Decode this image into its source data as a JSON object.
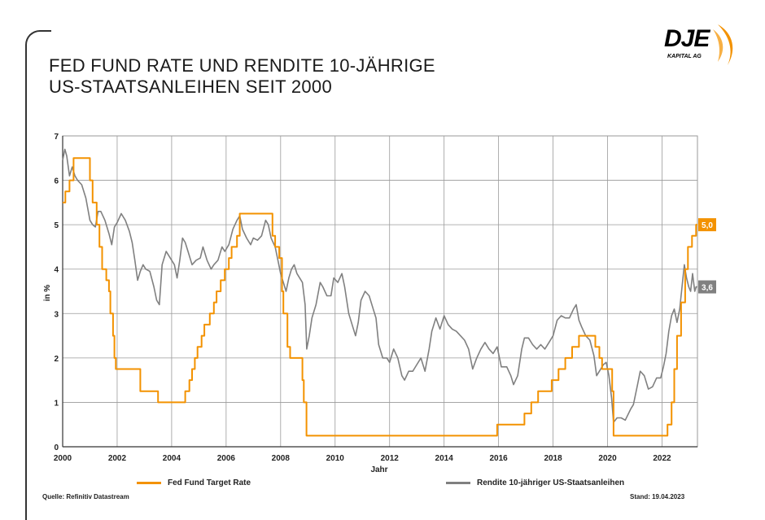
{
  "header": {
    "title_line1": "FED FUND RATE UND RENDITE 10-JÄHRIGE",
    "title_line2": "US-STAATSANLEIHEN SEIT 2000"
  },
  "logo": {
    "text": "DJE",
    "sub": "KAPITAL AG",
    "accent": "#f39200"
  },
  "footer": {
    "source": "Quelle: Refinitiv Datastream",
    "date": "Stand: 19.04.2023"
  },
  "colors": {
    "fed": "#f39200",
    "bond": "#808080",
    "grid": "#9a9a9a"
  },
  "chart_data": {
    "type": "line",
    "title": "FED FUND RATE UND RENDITE 10-JÄHRIGE US-STAATSANLEIHEN SEIT 2000",
    "xlabel": "Jahr",
    "ylabel": "in %",
    "xlim": [
      2000,
      2023.3
    ],
    "ylim": [
      0,
      7
    ],
    "x_ticks": [
      2000,
      2002,
      2004,
      2006,
      2008,
      2010,
      2012,
      2014,
      2016,
      2018,
      2020,
      2022
    ],
    "y_ticks": [
      0,
      1,
      2,
      3,
      4,
      5,
      6,
      7
    ],
    "grid": true,
    "series": [
      {
        "name": "Fed Fund Target Rate",
        "color": "#f39200",
        "step": true,
        "end_label": "5,0",
        "points": [
          [
            2000.0,
            5.5
          ],
          [
            2000.1,
            5.75
          ],
          [
            2000.25,
            6.0
          ],
          [
            2000.4,
            6.5
          ],
          [
            2001.0,
            6.0
          ],
          [
            2001.1,
            5.5
          ],
          [
            2001.25,
            5.0
          ],
          [
            2001.35,
            4.5
          ],
          [
            2001.45,
            4.0
          ],
          [
            2001.6,
            3.75
          ],
          [
            2001.7,
            3.5
          ],
          [
            2001.75,
            3.0
          ],
          [
            2001.85,
            2.5
          ],
          [
            2001.9,
            2.0
          ],
          [
            2001.95,
            1.75
          ],
          [
            2002.85,
            1.25
          ],
          [
            2003.5,
            1.0
          ],
          [
            2004.5,
            1.25
          ],
          [
            2004.65,
            1.5
          ],
          [
            2004.75,
            1.75
          ],
          [
            2004.85,
            2.0
          ],
          [
            2004.95,
            2.25
          ],
          [
            2005.1,
            2.5
          ],
          [
            2005.2,
            2.75
          ],
          [
            2005.4,
            3.0
          ],
          [
            2005.55,
            3.25
          ],
          [
            2005.65,
            3.5
          ],
          [
            2005.8,
            3.75
          ],
          [
            2005.95,
            4.0
          ],
          [
            2006.1,
            4.25
          ],
          [
            2006.2,
            4.5
          ],
          [
            2006.4,
            4.75
          ],
          [
            2006.5,
            5.25
          ],
          [
            2007.7,
            4.75
          ],
          [
            2007.8,
            4.5
          ],
          [
            2007.95,
            4.25
          ],
          [
            2008.05,
            3.5
          ],
          [
            2008.1,
            3.0
          ],
          [
            2008.25,
            2.25
          ],
          [
            2008.35,
            2.0
          ],
          [
            2008.8,
            1.5
          ],
          [
            2008.85,
            1.0
          ],
          [
            2008.95,
            0.25
          ],
          [
            2015.95,
            0.5
          ],
          [
            2016.95,
            0.75
          ],
          [
            2017.2,
            1.0
          ],
          [
            2017.45,
            1.25
          ],
          [
            2017.95,
            1.5
          ],
          [
            2018.2,
            1.75
          ],
          [
            2018.45,
            2.0
          ],
          [
            2018.7,
            2.25
          ],
          [
            2018.95,
            2.5
          ],
          [
            2019.55,
            2.25
          ],
          [
            2019.7,
            2.0
          ],
          [
            2019.8,
            1.75
          ],
          [
            2020.17,
            1.25
          ],
          [
            2020.22,
            0.25
          ],
          [
            2022.2,
            0.5
          ],
          [
            2022.35,
            1.0
          ],
          [
            2022.45,
            1.75
          ],
          [
            2022.55,
            2.5
          ],
          [
            2022.7,
            3.25
          ],
          [
            2022.85,
            4.0
          ],
          [
            2022.95,
            4.5
          ],
          [
            2023.1,
            4.75
          ],
          [
            2023.25,
            5.0
          ],
          [
            2023.3,
            5.0
          ]
        ]
      },
      {
        "name": "Rendite 10-jähriger US-Staatsanleihen",
        "color": "#808080",
        "step": false,
        "end_label": "3,6",
        "points": [
          [
            2000.0,
            6.45
          ],
          [
            2000.08,
            6.7
          ],
          [
            2000.15,
            6.55
          ],
          [
            2000.25,
            6.1
          ],
          [
            2000.35,
            6.3
          ],
          [
            2000.45,
            6.1
          ],
          [
            2000.55,
            6.0
          ],
          [
            2000.7,
            5.9
          ],
          [
            2000.85,
            5.6
          ],
          [
            2001.0,
            5.1
          ],
          [
            2001.1,
            5.0
          ],
          [
            2001.2,
            4.95
          ],
          [
            2001.3,
            5.3
          ],
          [
            2001.4,
            5.3
          ],
          [
            2001.55,
            5.1
          ],
          [
            2001.7,
            4.8
          ],
          [
            2001.8,
            4.55
          ],
          [
            2001.9,
            4.95
          ],
          [
            2002.0,
            5.05
          ],
          [
            2002.15,
            5.25
          ],
          [
            2002.3,
            5.1
          ],
          [
            2002.45,
            4.85
          ],
          [
            2002.55,
            4.6
          ],
          [
            2002.65,
            4.2
          ],
          [
            2002.75,
            3.75
          ],
          [
            2002.85,
            3.95
          ],
          [
            2002.95,
            4.1
          ],
          [
            2003.05,
            4.0
          ],
          [
            2003.2,
            3.95
          ],
          [
            2003.35,
            3.6
          ],
          [
            2003.45,
            3.3
          ],
          [
            2003.55,
            3.2
          ],
          [
            2003.65,
            4.1
          ],
          [
            2003.8,
            4.4
          ],
          [
            2003.95,
            4.25
          ],
          [
            2004.1,
            4.1
          ],
          [
            2004.2,
            3.8
          ],
          [
            2004.3,
            4.2
          ],
          [
            2004.4,
            4.7
          ],
          [
            2004.5,
            4.6
          ],
          [
            2004.6,
            4.4
          ],
          [
            2004.75,
            4.1
          ],
          [
            2004.9,
            4.2
          ],
          [
            2005.05,
            4.25
          ],
          [
            2005.15,
            4.5
          ],
          [
            2005.3,
            4.2
          ],
          [
            2005.45,
            4.0
          ],
          [
            2005.55,
            4.1
          ],
          [
            2005.7,
            4.2
          ],
          [
            2005.85,
            4.5
          ],
          [
            2005.95,
            4.4
          ],
          [
            2006.1,
            4.55
          ],
          [
            2006.25,
            4.9
          ],
          [
            2006.4,
            5.1
          ],
          [
            2006.5,
            5.2
          ],
          [
            2006.6,
            4.9
          ],
          [
            2006.75,
            4.7
          ],
          [
            2006.9,
            4.55
          ],
          [
            2007.0,
            4.7
          ],
          [
            2007.15,
            4.65
          ],
          [
            2007.3,
            4.75
          ],
          [
            2007.45,
            5.1
          ],
          [
            2007.55,
            5.0
          ],
          [
            2007.65,
            4.7
          ],
          [
            2007.8,
            4.5
          ],
          [
            2007.9,
            4.2
          ],
          [
            2008.0,
            3.9
          ],
          [
            2008.1,
            3.7
          ],
          [
            2008.2,
            3.5
          ],
          [
            2008.3,
            3.8
          ],
          [
            2008.4,
            4.0
          ],
          [
            2008.5,
            4.1
          ],
          [
            2008.6,
            3.9
          ],
          [
            2008.7,
            3.8
          ],
          [
            2008.8,
            3.7
          ],
          [
            2008.9,
            3.2
          ],
          [
            2008.96,
            2.2
          ],
          [
            2009.05,
            2.5
          ],
          [
            2009.15,
            2.9
          ],
          [
            2009.3,
            3.2
          ],
          [
            2009.45,
            3.7
          ],
          [
            2009.55,
            3.6
          ],
          [
            2009.7,
            3.4
          ],
          [
            2009.85,
            3.4
          ],
          [
            2009.95,
            3.8
          ],
          [
            2010.1,
            3.7
          ],
          [
            2010.25,
            3.9
          ],
          [
            2010.35,
            3.6
          ],
          [
            2010.5,
            3.0
          ],
          [
            2010.65,
            2.7
          ],
          [
            2010.75,
            2.5
          ],
          [
            2010.85,
            2.8
          ],
          [
            2010.95,
            3.3
          ],
          [
            2011.1,
            3.5
          ],
          [
            2011.25,
            3.4
          ],
          [
            2011.4,
            3.1
          ],
          [
            2011.5,
            2.9
          ],
          [
            2011.6,
            2.3
          ],
          [
            2011.75,
            2.0
          ],
          [
            2011.9,
            2.0
          ],
          [
            2012.0,
            1.9
          ],
          [
            2012.15,
            2.2
          ],
          [
            2012.3,
            2.0
          ],
          [
            2012.45,
            1.6
          ],
          [
            2012.55,
            1.5
          ],
          [
            2012.7,
            1.7
          ],
          [
            2012.85,
            1.7
          ],
          [
            2013.0,
            1.85
          ],
          [
            2013.15,
            2.0
          ],
          [
            2013.3,
            1.7
          ],
          [
            2013.45,
            2.2
          ],
          [
            2013.55,
            2.6
          ],
          [
            2013.7,
            2.9
          ],
          [
            2013.85,
            2.65
          ],
          [
            2014.0,
            2.95
          ],
          [
            2014.15,
            2.75
          ],
          [
            2014.3,
            2.65
          ],
          [
            2014.45,
            2.6
          ],
          [
            2014.6,
            2.5
          ],
          [
            2014.75,
            2.4
          ],
          [
            2014.9,
            2.2
          ],
          [
            2015.05,
            1.75
          ],
          [
            2015.2,
            2.0
          ],
          [
            2015.35,
            2.2
          ],
          [
            2015.5,
            2.35
          ],
          [
            2015.65,
            2.2
          ],
          [
            2015.8,
            2.1
          ],
          [
            2015.95,
            2.25
          ],
          [
            2016.1,
            1.8
          ],
          [
            2016.3,
            1.8
          ],
          [
            2016.45,
            1.6
          ],
          [
            2016.55,
            1.4
          ],
          [
            2016.7,
            1.6
          ],
          [
            2016.85,
            2.2
          ],
          [
            2016.95,
            2.45
          ],
          [
            2017.1,
            2.45
          ],
          [
            2017.25,
            2.3
          ],
          [
            2017.4,
            2.2
          ],
          [
            2017.55,
            2.3
          ],
          [
            2017.7,
            2.2
          ],
          [
            2017.85,
            2.35
          ],
          [
            2018.0,
            2.5
          ],
          [
            2018.15,
            2.85
          ],
          [
            2018.3,
            2.95
          ],
          [
            2018.45,
            2.9
          ],
          [
            2018.6,
            2.9
          ],
          [
            2018.75,
            3.1
          ],
          [
            2018.85,
            3.2
          ],
          [
            2018.95,
            2.85
          ],
          [
            2019.05,
            2.7
          ],
          [
            2019.2,
            2.5
          ],
          [
            2019.35,
            2.4
          ],
          [
            2019.5,
            2.05
          ],
          [
            2019.6,
            1.6
          ],
          [
            2019.7,
            1.7
          ],
          [
            2019.85,
            1.85
          ],
          [
            2019.95,
            1.9
          ],
          [
            2020.05,
            1.6
          ],
          [
            2020.15,
            1.1
          ],
          [
            2020.22,
            0.55
          ],
          [
            2020.35,
            0.65
          ],
          [
            2020.5,
            0.65
          ],
          [
            2020.65,
            0.6
          ],
          [
            2020.85,
            0.85
          ],
          [
            2020.95,
            0.95
          ],
          [
            2021.1,
            1.4
          ],
          [
            2021.2,
            1.7
          ],
          [
            2021.35,
            1.6
          ],
          [
            2021.5,
            1.3
          ],
          [
            2021.65,
            1.35
          ],
          [
            2021.8,
            1.55
          ],
          [
            2021.95,
            1.55
          ],
          [
            2022.05,
            1.8
          ],
          [
            2022.15,
            2.1
          ],
          [
            2022.25,
            2.6
          ],
          [
            2022.35,
            2.95
          ],
          [
            2022.45,
            3.1
          ],
          [
            2022.55,
            2.8
          ],
          [
            2022.65,
            3.1
          ],
          [
            2022.75,
            3.7
          ],
          [
            2022.82,
            4.1
          ],
          [
            2022.9,
            3.8
          ],
          [
            2022.98,
            3.6
          ],
          [
            2023.05,
            3.5
          ],
          [
            2023.12,
            3.9
          ],
          [
            2023.2,
            3.5
          ],
          [
            2023.25,
            3.6
          ],
          [
            2023.3,
            3.6
          ]
        ]
      }
    ]
  }
}
